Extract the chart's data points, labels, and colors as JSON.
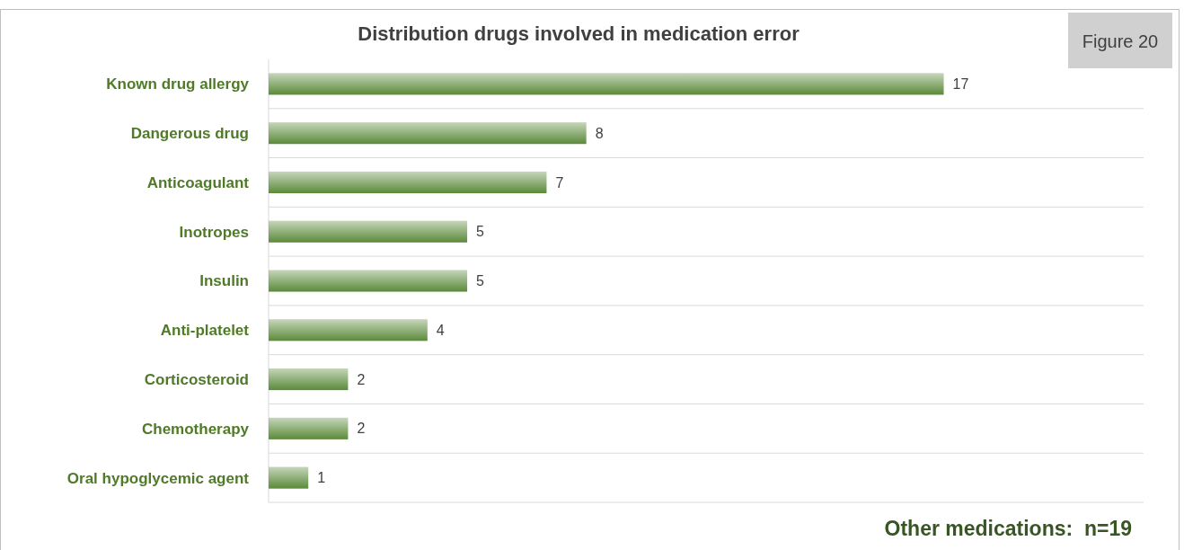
{
  "chart_data": {
    "type": "bar",
    "orientation": "horizontal",
    "title": "Distribution drugs involved in medication error",
    "categories": [
      "Known drug allergy",
      "Dangerous drug",
      "Anticoagulant",
      "Inotropes",
      "Insulin",
      "Anti-platelet",
      "Corticosteroid",
      "Chemotherapy",
      "Oral hypoglycemic agent"
    ],
    "values": [
      17,
      8,
      7,
      5,
      5,
      4,
      2,
      2,
      1
    ],
    "color": "#5b8a3a",
    "data_labels": true,
    "grid": "y",
    "annotations": [
      "Figure 20",
      "Other medications:  n=19"
    ]
  }
}
